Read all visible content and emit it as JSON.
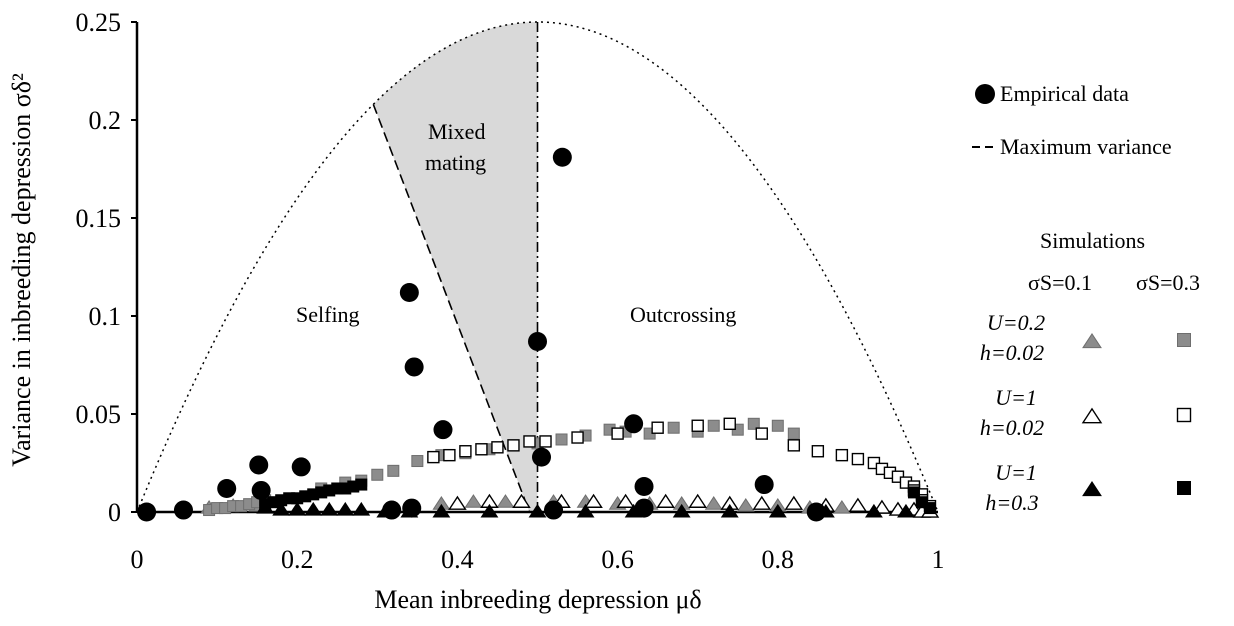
{
  "chart_data": {
    "type": "scatter",
    "xlabel": "Mean inbreeding depression μδ",
    "ylabel": "Variance in inbreeding depression σδ²",
    "xlim": [
      0,
      1
    ],
    "ylim": [
      0,
      0.25
    ],
    "x_ticks": [
      "0",
      "0.2",
      "0.4",
      "0.6",
      "0.8",
      "1"
    ],
    "y_ticks": [
      "0",
      "0.05",
      "0.1",
      "0.15",
      "0.2",
      "0.25"
    ],
    "grid": false,
    "regions": {
      "selfing_label": "Selfing",
      "mixed_label_line1": "Mixed",
      "mixed_label_line2": "mating",
      "outcrossing_label": "Outcrossing"
    },
    "legend": {
      "empirical": "Empirical data",
      "max_variance": "Maximum variance",
      "simulations_title": "Simulations",
      "col1": "σS=0.1",
      "col2": "σS=0.3",
      "rows": [
        {
          "line1": "U=0.2",
          "line2": "h=0.02",
          "style": "gray"
        },
        {
          "line1": "U=1",
          "line2": "h=0.02",
          "style": "open"
        },
        {
          "line1": "U=1",
          "line2": "h=0.3",
          "style": "black"
        }
      ]
    },
    "colors": {
      "gray": "#8c8c8c",
      "black": "#000000",
      "shade": "#d9d9d9"
    },
    "empirical": [
      [
        0.012,
        0.0
      ],
      [
        0.058,
        0.001
      ],
      [
        0.112,
        0.012
      ],
      [
        0.152,
        0.024
      ],
      [
        0.155,
        0.011
      ],
      [
        0.205,
        0.023
      ],
      [
        0.318,
        0.001
      ],
      [
        0.34,
        0.112
      ],
      [
        0.343,
        0.002
      ],
      [
        0.346,
        0.074
      ],
      [
        0.382,
        0.042
      ],
      [
        0.5,
        0.087
      ],
      [
        0.505,
        0.028
      ],
      [
        0.531,
        0.181
      ],
      [
        0.52,
        0.001
      ],
      [
        0.62,
        0.045
      ],
      [
        0.633,
        0.013
      ],
      [
        0.633,
        0.002
      ],
      [
        0.783,
        0.014
      ],
      [
        0.848,
        0.0
      ]
    ],
    "series": [
      {
        "name": "U=0.2 h=0.02 σS=0.1",
        "marker": "triangle",
        "style": "gray",
        "x": [
          0.09,
          0.12,
          0.15,
          0.38,
          0.42,
          0.46,
          0.52,
          0.56,
          0.6,
          0.64,
          0.68,
          0.72,
          0.76,
          0.8,
          0.84,
          0.88
        ],
        "y": [
          0.002,
          0.003,
          0.003,
          0.004,
          0.005,
          0.005,
          0.005,
          0.005,
          0.004,
          0.004,
          0.004,
          0.004,
          0.003,
          0.003,
          0.002,
          0.002
        ]
      },
      {
        "name": "U=1 h=0.02 σS=0.1",
        "marker": "triangle",
        "style": "open",
        "x": [
          0.4,
          0.44,
          0.48,
          0.53,
          0.57,
          0.61,
          0.66,
          0.7,
          0.74,
          0.78,
          0.82,
          0.86,
          0.9,
          0.93,
          0.95,
          0.97,
          0.98,
          0.99
        ],
        "y": [
          0.004,
          0.005,
          0.005,
          0.005,
          0.005,
          0.005,
          0.005,
          0.005,
          0.004,
          0.004,
          0.004,
          0.003,
          0.003,
          0.002,
          0.001,
          0.001,
          0.0,
          0.0
        ]
      },
      {
        "name": "U=1 h=0.3 σS=0.1",
        "marker": "triangle",
        "style": "black",
        "x": [
          0.16,
          0.18,
          0.2,
          0.22,
          0.24,
          0.26,
          0.28,
          0.31,
          0.34,
          0.38,
          0.44,
          0.5,
          0.56,
          0.62,
          0.68,
          0.74,
          0.8,
          0.86,
          0.92,
          0.96
        ],
        "y": [
          0.002,
          0.001,
          0.001,
          0.001,
          0.001,
          0.001,
          0.001,
          0.0,
          0.0,
          0.0,
          0.0,
          0.0,
          0.0,
          0.0,
          0.0,
          0.0,
          0.0,
          0.0,
          0.0,
          0.0
        ]
      },
      {
        "name": "U=0.2 h=0.02 σS=0.3",
        "marker": "square",
        "style": "gray",
        "x": [
          0.09,
          0.1,
          0.11,
          0.12,
          0.13,
          0.14,
          0.15,
          0.16,
          0.23,
          0.26,
          0.28,
          0.3,
          0.32,
          0.35,
          0.38,
          0.41,
          0.44,
          0.47,
          0.5,
          0.53,
          0.56,
          0.59,
          0.61,
          0.64,
          0.67,
          0.7,
          0.72,
          0.75,
          0.77,
          0.8,
          0.82
        ],
        "y": [
          0.001,
          0.002,
          0.002,
          0.003,
          0.003,
          0.004,
          0.005,
          0.006,
          0.012,
          0.015,
          0.016,
          0.019,
          0.021,
          0.026,
          0.029,
          0.03,
          0.032,
          0.034,
          0.035,
          0.037,
          0.039,
          0.042,
          0.041,
          0.04,
          0.043,
          0.041,
          0.044,
          0.042,
          0.045,
          0.044,
          0.04
        ]
      },
      {
        "name": "U=1 h=0.02 σS=0.3",
        "marker": "square",
        "style": "open",
        "x": [
          0.37,
          0.39,
          0.41,
          0.43,
          0.45,
          0.47,
          0.49,
          0.51,
          0.55,
          0.6,
          0.65,
          0.7,
          0.74,
          0.78,
          0.82,
          0.85,
          0.88,
          0.9,
          0.92,
          0.93,
          0.94,
          0.95,
          0.96,
          0.97,
          0.97,
          0.98,
          0.98,
          0.99
        ],
        "y": [
          0.028,
          0.029,
          0.031,
          0.032,
          0.033,
          0.034,
          0.036,
          0.036,
          0.038,
          0.04,
          0.043,
          0.044,
          0.045,
          0.04,
          0.034,
          0.031,
          0.029,
          0.027,
          0.025,
          0.022,
          0.02,
          0.018,
          0.015,
          0.013,
          0.011,
          0.009,
          0.006,
          0.003
        ]
      },
      {
        "name": "U=1 h=0.3 σS=0.3",
        "marker": "square",
        "style": "black",
        "x": [
          0.16,
          0.17,
          0.18,
          0.19,
          0.2,
          0.21,
          0.22,
          0.23,
          0.24,
          0.25,
          0.26,
          0.27,
          0.28,
          0.97,
          0.98,
          0.99
        ],
        "y": [
          0.004,
          0.005,
          0.006,
          0.007,
          0.007,
          0.008,
          0.009,
          0.01,
          0.011,
          0.012,
          0.012,
          0.013,
          0.014,
          0.01,
          0.005,
          0.002
        ]
      }
    ]
  }
}
